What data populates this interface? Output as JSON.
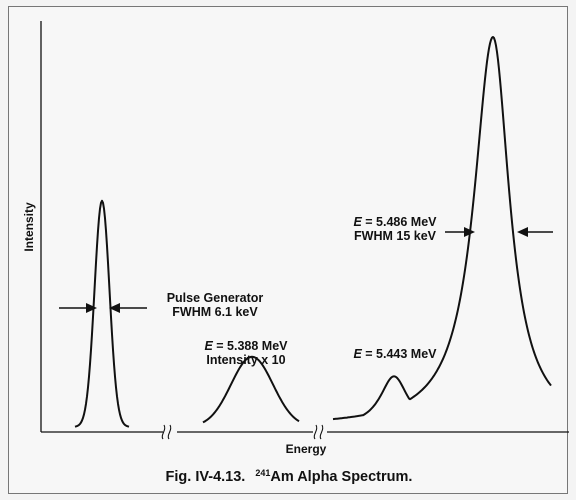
{
  "caption": {
    "prefix": "Fig. IV-4.13.",
    "isotope_mass": "241",
    "isotope_rest": "Am Alpha Spectrum."
  },
  "chart_data": {
    "type": "line",
    "title": "",
    "xlabel": "Energy",
    "ylabel": "Intensity",
    "axis_breaks": 2,
    "peaks": [
      {
        "name": "Pulse Generator",
        "label_lines": [
          "Pulse Generator",
          "FWHM 6.1 keV"
        ],
        "energy": "",
        "fwhm": "6.1 keV",
        "relative_height": 0.58,
        "fwhm_arrows": true
      },
      {
        "name": "E = 5.388 MeV",
        "label_lines": [
          "E = 5.388 MeV",
          "Intensity x 10"
        ],
        "energy": "5.388 MeV",
        "note": "Intensity x 10",
        "relative_height": 0.18
      },
      {
        "name": "E = 5.443 MeV",
        "label_lines": [
          "E = 5.443 MeV"
        ],
        "energy": "5.443 MeV",
        "relative_height": 0.13
      },
      {
        "name": "E = 5.486 MeV",
        "label_lines": [
          "E = 5.486 MeV",
          "FWHM 15 keV"
        ],
        "energy": "5.486 MeV",
        "fwhm": "15 keV",
        "relative_height": 1.0,
        "fwhm_arrows": true
      }
    ],
    "grid": false,
    "legend": "none"
  }
}
